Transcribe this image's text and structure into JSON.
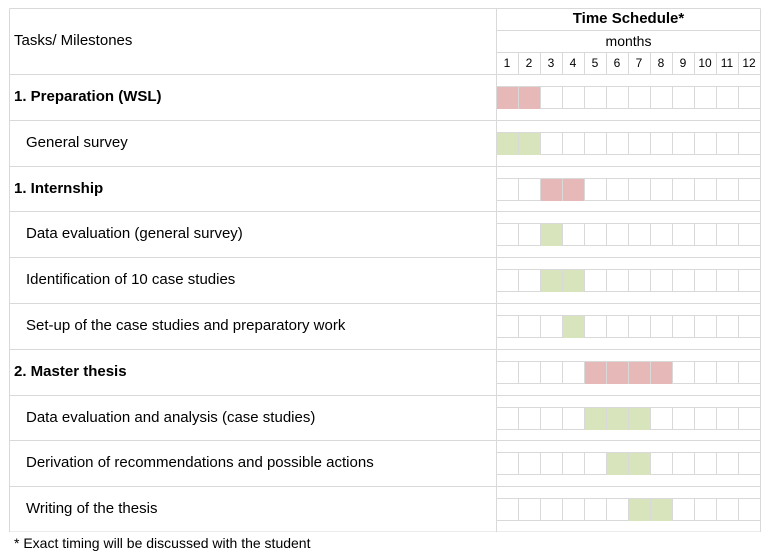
{
  "header": {
    "tasks_label": "Tasks/ Milestones",
    "schedule_title": "Time Schedule*",
    "months_label": "months",
    "months": [
      "1",
      "2",
      "3",
      "4",
      "5",
      "6",
      "7",
      "8",
      "9",
      "10",
      "11",
      "12"
    ]
  },
  "colors": {
    "phase_bar": "#e6b8b7",
    "task_bar": "#d8e4bc",
    "grid": "#d9d9d9"
  },
  "rows": [
    {
      "label": "1. Preparation (WSL)",
      "type": "phase",
      "start_month": 1,
      "end_month": 2
    },
    {
      "label": "General survey",
      "type": "task",
      "start_month": 1,
      "end_month": 2
    },
    {
      "label": "1. Internship",
      "type": "phase",
      "start_month": 3,
      "end_month": 4
    },
    {
      "label": "Data evaluation (general survey)",
      "type": "task",
      "start_month": 3,
      "end_month": 3
    },
    {
      "label": "Identification of 10 case studies",
      "type": "task",
      "start_month": 3,
      "end_month": 4
    },
    {
      "label": "Set-up of the case studies and preparatory work",
      "type": "task",
      "start_month": 4,
      "end_month": 4
    },
    {
      "label": "2. Master thesis",
      "type": "phase",
      "start_month": 5,
      "end_month": 8
    },
    {
      "label": "Data evaluation and analysis (case studies)",
      "type": "task",
      "start_month": 5,
      "end_month": 7
    },
    {
      "label": "Derivation of recommendations and possible actions",
      "type": "task",
      "start_month": 6,
      "end_month": 7
    },
    {
      "label": "Writing of the thesis",
      "type": "task",
      "start_month": 7,
      "end_month": 8
    }
  ],
  "footnote": "* Exact timing will be discussed with the student"
}
